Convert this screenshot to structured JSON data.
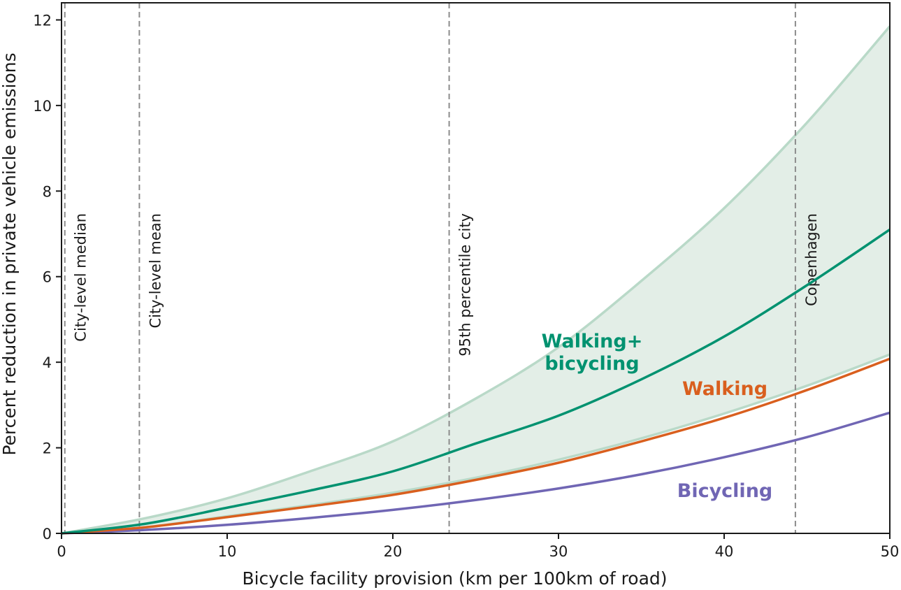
{
  "chart_data": {
    "type": "line",
    "title": "",
    "xlabel": "Bicycle facility provision (km per 100km of road)",
    "ylabel": "Percent reduction in private vehicle emissions",
    "xlim": [
      0,
      50
    ],
    "ylim": [
      0,
      12.4
    ],
    "xticks": [
      0,
      10,
      20,
      30,
      40,
      50
    ],
    "yticks": [
      0,
      2,
      4,
      6,
      8,
      10,
      12
    ],
    "grid": false,
    "legend": "inline labels",
    "x": [
      0,
      5,
      10,
      15,
      20,
      25,
      30,
      35,
      40,
      45,
      50
    ],
    "series": [
      {
        "name": "Walking+ bicycling",
        "label_lines": [
          "Walking+",
          "bicycling"
        ],
        "color": "#009270",
        "values": [
          0,
          0.22,
          0.6,
          1.0,
          1.45,
          2.1,
          2.75,
          3.6,
          4.6,
          5.8,
          7.1
        ]
      },
      {
        "name": "Walking",
        "label_lines": [
          "Walking"
        ],
        "color": "#d95f1e",
        "values": [
          0,
          0.14,
          0.38,
          0.63,
          0.9,
          1.25,
          1.65,
          2.15,
          2.7,
          3.35,
          4.08
        ]
      },
      {
        "name": "Bicycling",
        "label_lines": [
          "Bicycling"
        ],
        "color": "#7066b4",
        "values": [
          0,
          0.08,
          0.2,
          0.36,
          0.55,
          0.78,
          1.05,
          1.38,
          1.78,
          2.25,
          2.82
        ]
      }
    ],
    "band": {
      "name": "Walking+bicycling range",
      "fill": "#e3eee7",
      "edge": "#b9d9c8",
      "lower": [
        0,
        0.14,
        0.4,
        0.66,
        0.95,
        1.3,
        1.72,
        2.22,
        2.8,
        3.45,
        4.18
      ],
      "upper": [
        0,
        0.35,
        0.82,
        1.45,
        2.15,
        3.15,
        4.35,
        5.9,
        7.6,
        9.6,
        11.85
      ]
    },
    "reference_lines": [
      {
        "x": 0.2,
        "label": "City-level median"
      },
      {
        "x": 4.7,
        "label": "City-level mean"
      },
      {
        "x": 23.4,
        "label": "95th percentile city"
      },
      {
        "x": 44.3,
        "label": "Copenhagen"
      }
    ],
    "reference_line_color": "#8c8c8c"
  }
}
